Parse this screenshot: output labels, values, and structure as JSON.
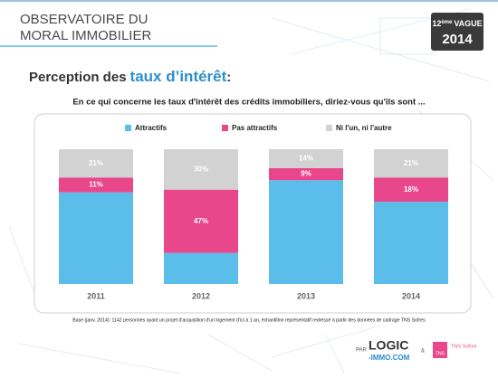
{
  "header": {
    "line1": "OBSERVATOIRE DU",
    "line2": "MORAL IMMOBILIER",
    "badge": {
      "number": "12",
      "suffix": "ème",
      "label": "VAGUE",
      "year": "2014"
    }
  },
  "slide": {
    "heading": [
      "Perception des",
      "taux d’intérêt",
      ":"
    ]
  },
  "chart_data": {
    "type": "stacked_bar",
    "title": "En ce qui concerne les taux d'intérêt des crédits immobiliers, diriez-vous qu'ils sont ...",
    "categories": [
      "2011",
      "2012",
      "2013",
      "2014"
    ],
    "series": [
      {
        "name": "Attractifs",
        "color": "#5bbde9",
        "values": [
          68,
          23,
          77,
          61
        ]
      },
      {
        "name": "Pas attractifs",
        "color": "#e8478b",
        "values": [
          11,
          47,
          9,
          18
        ],
        "value_labels": [
          "11%",
          "47%",
          "9%",
          "18%"
        ]
      },
      {
        "name": "Ni l'un, ni l'autre",
        "color": "#d2d2d2",
        "values": [
          21,
          30,
          14,
          21
        ],
        "value_labels": [
          "21%",
          "30%",
          "14%",
          "21%"
        ]
      }
    ]
  },
  "footnote": "Base (janv. 2014): 1142 personnes ayant un projet d'acquisition d'un logement d'ici à 1 an, échantillon représentatif redressé à partir des données de cadrage TNS Sofres",
  "footer": {
    "by": "PAR",
    "logo_top": "LOGIC",
    "logo_bottom": "-IMMO.COM",
    "and": "&",
    "partner": "TNS Sofres",
    "partner_short": "TNS"
  }
}
